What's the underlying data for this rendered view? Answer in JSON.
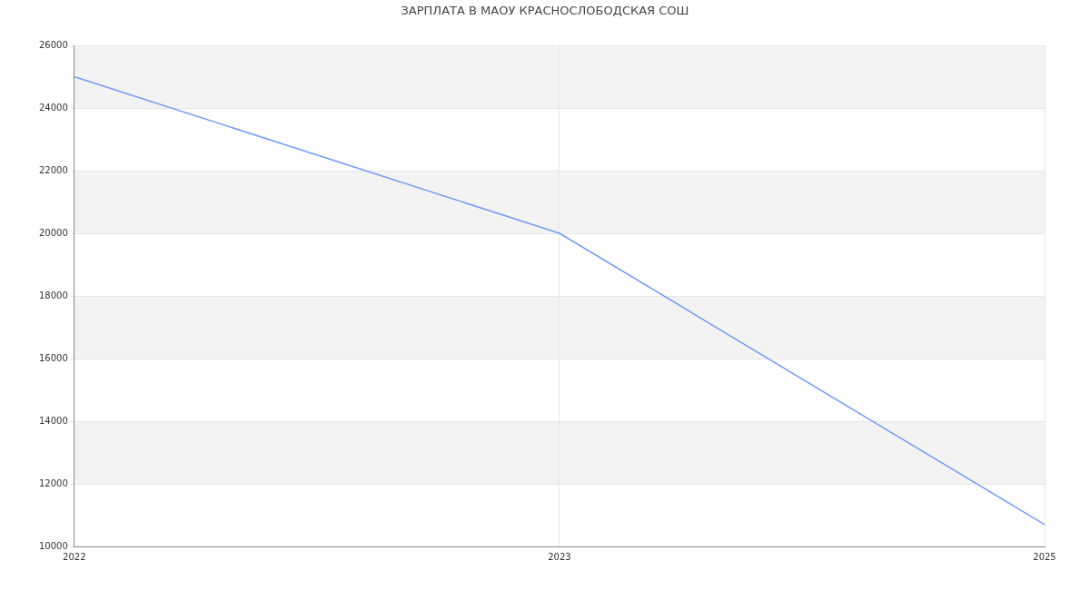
{
  "chart_data": {
    "type": "line",
    "title": "ЗАРПЛАТА В МАОУ КРАСНОСЛОБОДСКАЯ СОШ",
    "categories": [
      "2022",
      "2023",
      "2025"
    ],
    "series": [
      {
        "color": "#6f9cf7",
        "values": [
          25000,
          20000,
          10700
        ]
      }
    ],
    "ylim": [
      10000,
      26000
    ],
    "yticks": [
      10000,
      12000,
      14000,
      16000,
      18000,
      20000,
      22000,
      24000,
      26000
    ],
    "grid": true,
    "legend": false,
    "marker": "none",
    "line_style": "solid"
  }
}
